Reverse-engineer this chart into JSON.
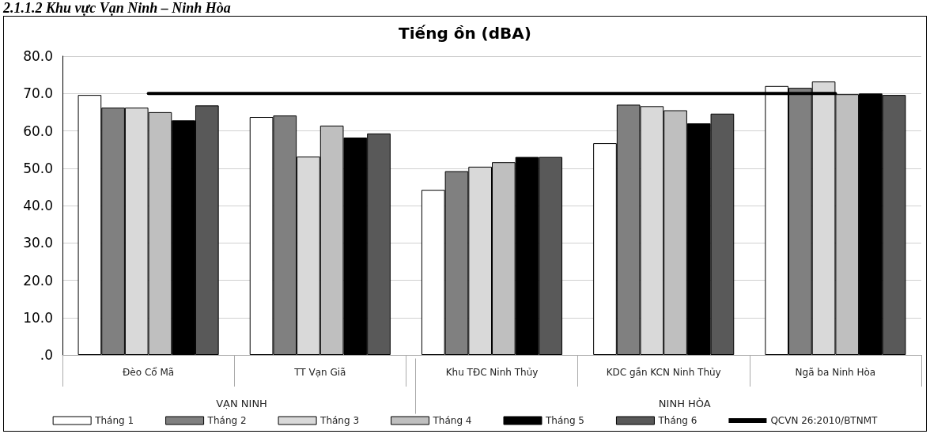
{
  "chart_data": {
    "type": "bar",
    "title": "Tiếng ồn (dBA)",
    "categories": [
      "Đèo Cổ Mã",
      "TT Vạn Giã",
      "Khu TĐC Ninh Thủy",
      "KDC gần KCN Ninh Thủy",
      "Ngã ba Ninh Hòa"
    ],
    "series": [
      {
        "name": "Tháng 1",
        "color": "#ffffff",
        "values": [
          69.6,
          63.7,
          44.2,
          56.7,
          72.0
        ]
      },
      {
        "name": "Tháng 2",
        "color": "#808080",
        "values": [
          66.2,
          64.1,
          49.2,
          67.0,
          71.5
        ]
      },
      {
        "name": "Tháng 3",
        "color": "#d9d9d9",
        "values": [
          66.2,
          53.1,
          50.4,
          66.6,
          73.2
        ]
      },
      {
        "name": "Tháng 4",
        "color": "#bfbfbf",
        "values": [
          65.0,
          61.4,
          51.6,
          65.5,
          69.8
        ]
      },
      {
        "name": "Tháng 5",
        "color": "#000000",
        "values": [
          62.8,
          58.2,
          53.0,
          62.0,
          70.0
        ]
      },
      {
        "name": "Tháng 6",
        "color": "#595959",
        "values": [
          66.8,
          59.3,
          53.0,
          64.6,
          69.6
        ]
      },
      {
        "name": "QCVN 26:2010/BTNMT",
        "type": "line",
        "color": "#000000",
        "values": [
          70,
          70,
          70,
          70,
          70
        ]
      }
    ],
    "marker": "none",
    "line_style": "solid",
    "ylim": [
      0,
      80
    ],
    "yticks": [
      {
        "value": 0,
        "label": ".0"
      },
      {
        "value": 10,
        "label": "10.0"
      },
      {
        "value": 20,
        "label": "20.0"
      },
      {
        "value": 30,
        "label": "30.0"
      },
      {
        "value": 40,
        "label": "40.0"
      },
      {
        "value": 50,
        "label": "50.0"
      },
      {
        "value": 60,
        "label": "60.0"
      },
      {
        "value": 70,
        "label": "70.0"
      },
      {
        "value": 80,
        "label": "80.0"
      }
    ],
    "grid": "y",
    "legend": "bottom",
    "annotations": [
      "2.1.1.2 Khu vực Vạn Ninh – Ninh Hòa",
      "VẠN NINH",
      "NINH HÒA"
    ]
  }
}
